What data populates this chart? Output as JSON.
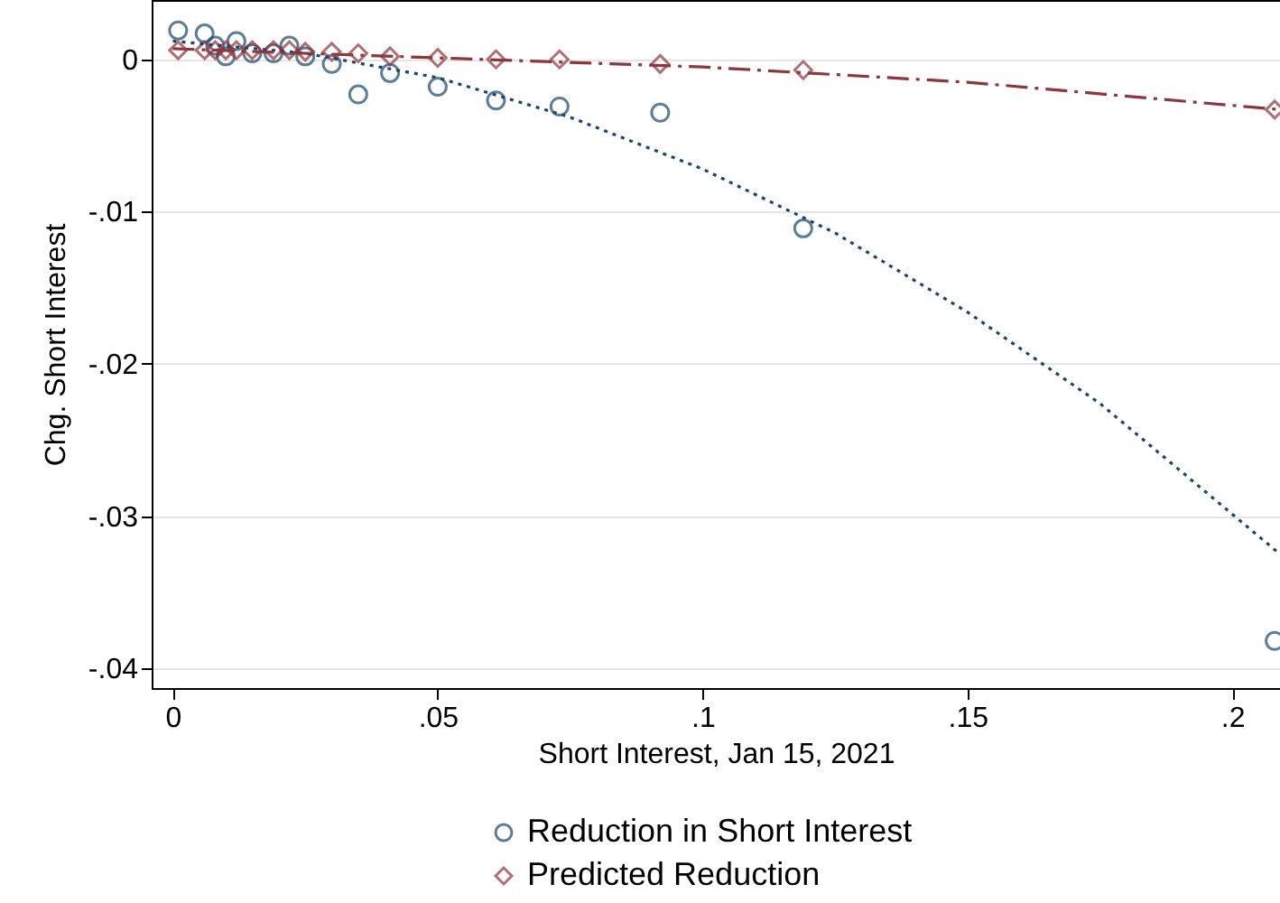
{
  "chart_data": {
    "type": "scatter",
    "xlabel": "Short Interest, Jan 15, 2021",
    "ylabel": "Chg. Short Interest",
    "xlim": [
      -0.004,
      0.209
    ],
    "ylim": [
      -0.0413,
      0.0039
    ],
    "xticks": [
      {
        "value": 0,
        "label": "0"
      },
      {
        "value": 0.05,
        "label": ".05"
      },
      {
        "value": 0.1,
        "label": ".1"
      },
      {
        "value": 0.15,
        "label": ".15"
      },
      {
        "value": 0.2,
        "label": ".2"
      }
    ],
    "yticks": [
      {
        "value": 0,
        "label": "0"
      },
      {
        "value": -0.01,
        "label": "-.01"
      },
      {
        "value": -0.02,
        "label": "-.02"
      },
      {
        "value": -0.03,
        "label": "-.03"
      },
      {
        "value": -0.04,
        "label": "-.04"
      }
    ],
    "grid": "y",
    "legend": "bottom",
    "series": [
      {
        "name": "Reduction in Short Interest",
        "marker": "circle",
        "color": "#1a476f",
        "x": [
          0.001,
          0.006,
          0.008,
          0.01,
          0.012,
          0.015,
          0.019,
          0.022,
          0.025,
          0.03,
          0.035,
          0.041,
          0.05,
          0.061,
          0.073,
          0.092,
          0.119,
          0.208
        ],
        "values": [
          0.0019,
          0.0017,
          0.0009,
          0.0002,
          0.0012,
          0.0004,
          0.0004,
          0.0009,
          0.0002,
          -0.0003,
          -0.0023,
          -0.0009,
          -0.0018,
          -0.0027,
          -0.0031,
          -0.0035,
          -0.0111,
          -0.0382
        ]
      },
      {
        "name": "Predicted Reduction",
        "marker": "diamond",
        "color": "#90353b",
        "x": [
          0.001,
          0.006,
          0.008,
          0.01,
          0.012,
          0.015,
          0.019,
          0.022,
          0.025,
          0.03,
          0.035,
          0.041,
          0.05,
          0.061,
          0.073,
          0.092,
          0.119,
          0.208
        ],
        "values": [
          0.0006,
          0.0006,
          0.0006,
          0.0006,
          0.0006,
          0.0006,
          0.0006,
          0.0006,
          0.0005,
          0.0005,
          0.0004,
          0.0002,
          0.0001,
          0.0,
          0.0,
          -0.0003,
          -0.0007,
          -0.0033
        ]
      },
      {
        "type": "line",
        "line_style": "dotted",
        "color": "#1a476f",
        "x": [
          0,
          0.025,
          0.05,
          0.075,
          0.1,
          0.125,
          0.15,
          0.175,
          0.209
        ],
        "values": [
          0.0012,
          0.0004,
          -0.0012,
          -0.0038,
          -0.0072,
          -0.0114,
          -0.0166,
          -0.0226,
          -0.0325
        ]
      },
      {
        "type": "line",
        "line_style": "dashed",
        "color": "#90353b",
        "x": [
          0,
          0.05,
          0.1,
          0.15,
          0.209
        ],
        "values": [
          0.0007,
          0.0001,
          -0.0005,
          -0.0015,
          -0.0033
        ]
      }
    ]
  }
}
